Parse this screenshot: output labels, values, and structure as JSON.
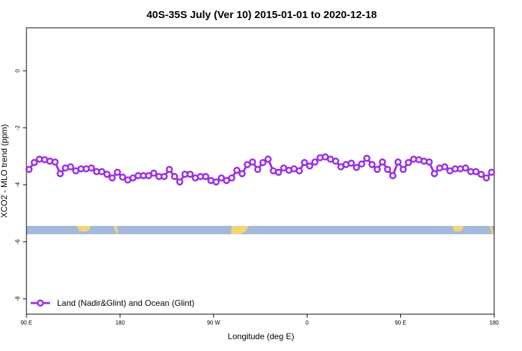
{
  "chart_data": {
    "type": "line",
    "title": "40S-35S July (Ver 10)   2015-01-01 to 2020-12-18",
    "x_label": "Longitude (deg E)",
    "y_label": "XCO2 - MLO trend (ppm)",
    "x": [
      92.5,
      97.5,
      102.5,
      107.5,
      112.5,
      117.5,
      122.5,
      127.5,
      132.5,
      137.5,
      142.5,
      147.5,
      152.5,
      157.5,
      162.5,
      167.5,
      172.5,
      177.5,
      182.5,
      187.5,
      192.5,
      197.5,
      202.5,
      207.5,
      212.5,
      217.5,
      222.5,
      227.5,
      232.5,
      237.5,
      242.5,
      247.5,
      252.5,
      257.5,
      262.5,
      267.5,
      272.5,
      277.5,
      282.5,
      287.5,
      292.5,
      297.5,
      302.5,
      307.5,
      312.5,
      317.5,
      322.5,
      327.5,
      332.5,
      337.5,
      342.5,
      347.5,
      352.5,
      357.5,
      362.5,
      367.5,
      372.5,
      377.5,
      382.5,
      387.5,
      392.5,
      397.5,
      402.5,
      407.5,
      412.5,
      417.5,
      422.5,
      427.5,
      432.5,
      437.5,
      442.5,
      447.5,
      452.5,
      457.5,
      462.5,
      467.5,
      472.5,
      477.5,
      482.5,
      487.5,
      492.5,
      497.5,
      502.5,
      507.5,
      512.5,
      517.5,
      522.5,
      527.5,
      532.5,
      537.5
    ],
    "series": [
      {
        "name": "Land (Nadir&Glint) and Ocean (Glint)",
        "color": "#9b2fe3",
        "values": [
          -3.46,
          -3.22,
          -3.1,
          -3.12,
          -3.17,
          -3.2,
          -3.61,
          -3.41,
          -3.37,
          -3.51,
          -3.44,
          -3.44,
          -3.41,
          -3.54,
          -3.54,
          -3.63,
          -3.76,
          -3.56,
          -3.73,
          -3.83,
          -3.76,
          -3.68,
          -3.68,
          -3.68,
          -3.59,
          -3.71,
          -3.71,
          -3.46,
          -3.71,
          -3.9,
          -3.63,
          -3.63,
          -3.76,
          -3.71,
          -3.71,
          -3.85,
          -3.9,
          -3.76,
          -3.85,
          -3.76,
          -3.49,
          -3.61,
          -3.29,
          -3.2,
          -3.46,
          -3.22,
          -3.1,
          -3.51,
          -3.56,
          -3.41,
          -3.49,
          -3.44,
          -3.51,
          -3.22,
          -3.34,
          -3.2,
          -3.05,
          -3.02,
          -3.1,
          -3.17,
          -3.37,
          -3.29,
          -3.24,
          -3.39,
          -3.27,
          -3.07,
          -3.29,
          -3.46,
          -3.2,
          -3.46,
          -3.68,
          -3.2,
          -3.46,
          -3.22,
          -3.1,
          -3.12,
          -3.17,
          -3.2,
          -3.61,
          -3.41,
          -3.37,
          -3.51,
          -3.44,
          -3.44,
          -3.41,
          -3.54,
          -3.54,
          -3.63,
          -3.76,
          -3.56
        ]
      }
    ],
    "xlim": [
      90,
      540
    ],
    "xticks": [
      {
        "value": 90,
        "label": "90 E"
      },
      180,
      {
        "value": 270,
        "label": "90 W"
      },
      {
        "value": 360,
        "label": "0"
      },
      {
        "value": 450,
        "label": "90 E"
      },
      {
        "value": 540,
        "label": "180"
      }
    ],
    "ylim": [
      -8.54,
      1.51
    ],
    "yticks": [
      0,
      -2,
      -4,
      -6,
      -8
    ],
    "legend": "bottom-left"
  }
}
